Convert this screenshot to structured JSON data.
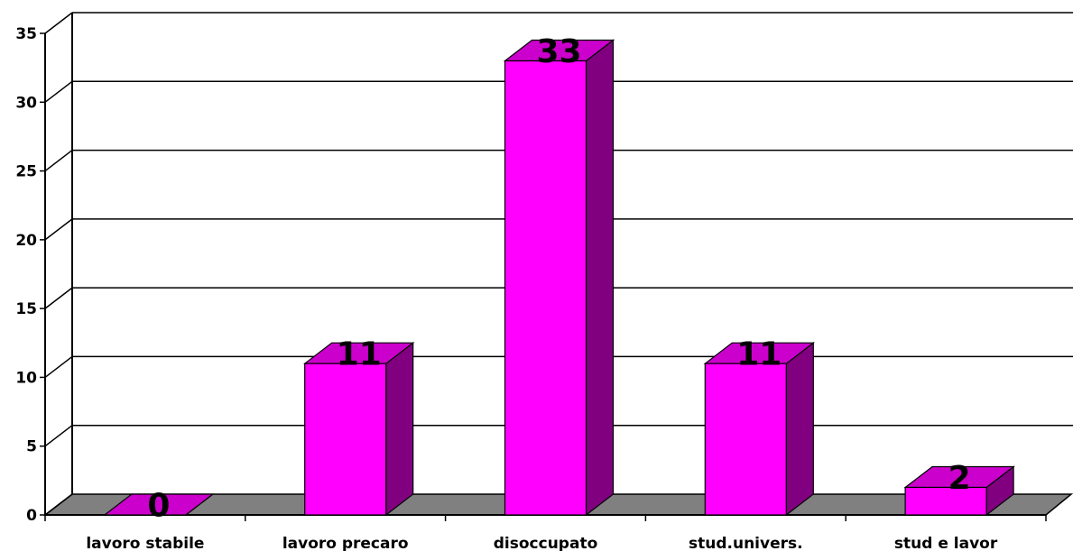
{
  "chart_data": {
    "type": "bar",
    "categories": [
      "lavoro stabile",
      "lavoro precaro",
      "disoccupato",
      "stud.univers.",
      "stud e lavor"
    ],
    "values": [
      0,
      11,
      33,
      11,
      2
    ],
    "data_labels": [
      "0",
      "11",
      "33",
      "11",
      "2"
    ],
    "yticks": [
      "0",
      "5",
      "10",
      "15",
      "20",
      "25",
      "30",
      "35"
    ],
    "ylim": [
      0,
      35
    ],
    "title": "",
    "xlabel": "",
    "ylabel": "",
    "grid": true,
    "legend": "none",
    "style": "3d",
    "colors": {
      "bar_front": "#ff00ff",
      "bar_top": "#cc00cc",
      "bar_side": "#800080",
      "floor": "#808080",
      "grid": "#000000"
    }
  }
}
